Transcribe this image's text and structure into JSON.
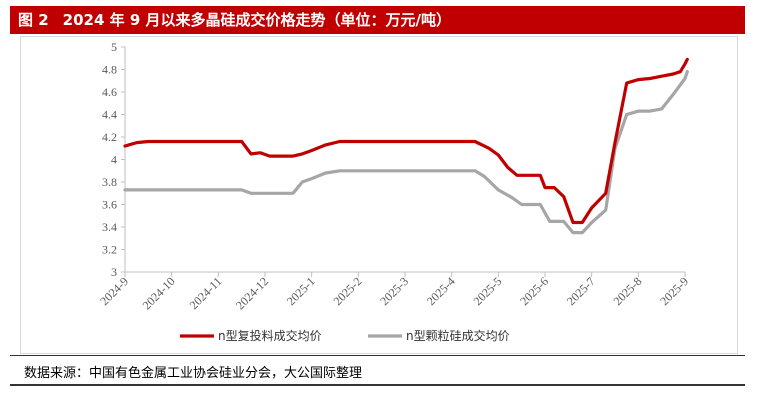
{
  "header": {
    "figure_label": "图 2",
    "title": "2024 年 9 月以来多晶硅成交价格走势（单位：万元/吨）"
  },
  "source": "数据来源：中国有色金属工业协会硅业分会，大公国际整理",
  "colors": {
    "series_1": "#c00000",
    "series_2": "#a6a6a6",
    "header_bg": "#c00000"
  },
  "chart_data": {
    "type": "line",
    "title": "2024 年 9 月以来多晶硅成交价格走势（单位：万元/吨）",
    "xlabel": "",
    "ylabel": "",
    "ylim": [
      3,
      5
    ],
    "yticks": [
      "3",
      "3.2",
      "3.4",
      "3.6",
      "3.8",
      "4",
      "4.2",
      "4.4",
      "4.6",
      "4.8",
      "5"
    ],
    "xticks": [
      "2024-9",
      "2024-10",
      "2024-11",
      "2024-12",
      "2025-1",
      "2025-2",
      "2025-3",
      "2025-4",
      "2025-5",
      "2025-6",
      "2025-7",
      "2025-8",
      "2025-9"
    ],
    "grid": false,
    "legend_position": "bottom",
    "series": [
      {
        "name": "n型复投料成交均价",
        "points": [
          [
            0.0,
            4.12
          ],
          [
            0.25,
            4.15
          ],
          [
            0.5,
            4.16
          ],
          [
            1.0,
            4.16
          ],
          [
            1.5,
            4.16
          ],
          [
            2.0,
            4.16
          ],
          [
            2.5,
            4.16
          ],
          [
            2.7,
            4.05
          ],
          [
            2.9,
            4.06
          ],
          [
            3.1,
            4.03
          ],
          [
            3.4,
            4.03
          ],
          [
            3.6,
            4.03
          ],
          [
            3.8,
            4.05
          ],
          [
            4.0,
            4.08
          ],
          [
            4.3,
            4.13
          ],
          [
            4.6,
            4.16
          ],
          [
            5.0,
            4.16
          ],
          [
            5.5,
            4.16
          ],
          [
            6.0,
            4.16
          ],
          [
            6.5,
            4.16
          ],
          [
            7.0,
            4.16
          ],
          [
            7.5,
            4.16
          ],
          [
            7.8,
            4.1
          ],
          [
            8.0,
            4.04
          ],
          [
            8.2,
            3.93
          ],
          [
            8.4,
            3.86
          ],
          [
            8.7,
            3.86
          ],
          [
            8.9,
            3.86
          ],
          [
            9.0,
            3.75
          ],
          [
            9.2,
            3.75
          ],
          [
            9.4,
            3.67
          ],
          [
            9.6,
            3.44
          ],
          [
            9.8,
            3.44
          ],
          [
            10.0,
            3.57
          ],
          [
            10.3,
            3.7
          ],
          [
            10.5,
            4.15
          ],
          [
            10.75,
            4.68
          ],
          [
            11.0,
            4.71
          ],
          [
            11.25,
            4.72
          ],
          [
            11.5,
            4.74
          ],
          [
            11.75,
            4.76
          ],
          [
            11.9,
            4.78
          ],
          [
            12.0,
            4.85
          ],
          [
            12.05,
            4.89
          ]
        ]
      },
      {
        "name": "n型颗粒硅成交均价",
        "points": [
          [
            0.0,
            3.73
          ],
          [
            0.5,
            3.73
          ],
          [
            1.0,
            3.73
          ],
          [
            1.5,
            3.73
          ],
          [
            2.0,
            3.73
          ],
          [
            2.5,
            3.73
          ],
          [
            2.7,
            3.7
          ],
          [
            3.0,
            3.7
          ],
          [
            3.4,
            3.7
          ],
          [
            3.6,
            3.7
          ],
          [
            3.8,
            3.8
          ],
          [
            4.0,
            3.83
          ],
          [
            4.3,
            3.88
          ],
          [
            4.6,
            3.9
          ],
          [
            5.0,
            3.9
          ],
          [
            5.5,
            3.9
          ],
          [
            6.0,
            3.9
          ],
          [
            6.5,
            3.9
          ],
          [
            7.0,
            3.9
          ],
          [
            7.5,
            3.9
          ],
          [
            7.7,
            3.85
          ],
          [
            8.0,
            3.73
          ],
          [
            8.3,
            3.66
          ],
          [
            8.5,
            3.6
          ],
          [
            8.9,
            3.6
          ],
          [
            9.1,
            3.45
          ],
          [
            9.4,
            3.45
          ],
          [
            9.6,
            3.35
          ],
          [
            9.8,
            3.35
          ],
          [
            10.0,
            3.44
          ],
          [
            10.3,
            3.55
          ],
          [
            10.5,
            4.1
          ],
          [
            10.75,
            4.4
          ],
          [
            11.0,
            4.43
          ],
          [
            11.25,
            4.43
          ],
          [
            11.5,
            4.45
          ],
          [
            11.75,
            4.58
          ],
          [
            12.0,
            4.72
          ],
          [
            12.05,
            4.78
          ]
        ]
      }
    ]
  }
}
